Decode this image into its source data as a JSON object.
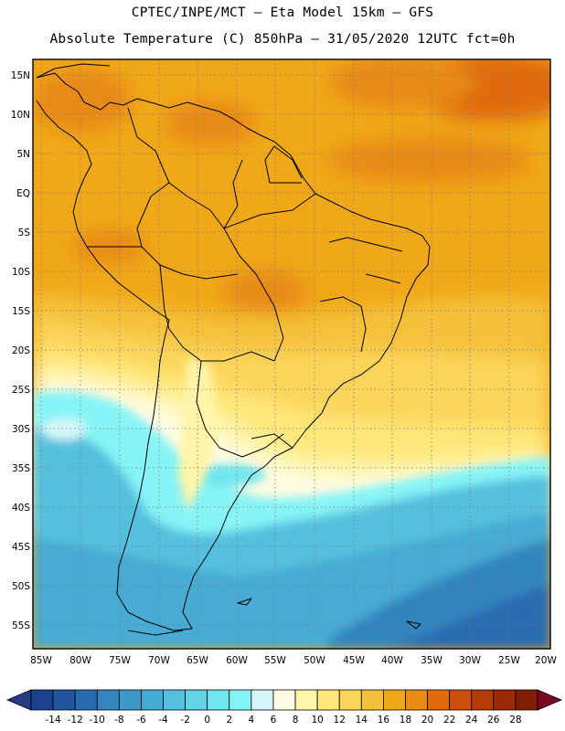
{
  "header": {
    "line1": "CPTEC/INPE/MCT –  Eta Model 15km – GFS",
    "line2": "Absolute Temperature (C) 850hPa – 31/05/2020 12UTC fct=0h"
  },
  "axes": {
    "lat_labels": [
      "15N",
      "10N",
      "5N",
      "EQ",
      "5S",
      "10S",
      "15S",
      "20S",
      "25S",
      "30S",
      "35S",
      "40S",
      "45S",
      "50S",
      "55S"
    ],
    "lon_labels": [
      "85W",
      "80W",
      "75W",
      "70W",
      "65W",
      "60W",
      "55W",
      "50W",
      "45W",
      "40W",
      "35W",
      "30W",
      "25W",
      "20W"
    ]
  },
  "colorbar": {
    "ticks": [
      "-14",
      "-12",
      "-10",
      "-8",
      "-6",
      "-4",
      "-2",
      "0",
      "2",
      "4",
      "6",
      "8",
      "10",
      "12",
      "14",
      "16",
      "18",
      "20",
      "22",
      "24",
      "26",
      "28"
    ],
    "colors": [
      "#1f3f8f",
      "#2255a0",
      "#2a6cb0",
      "#3384bf",
      "#3c98c9",
      "#46abd3",
      "#54c0dd",
      "#60d4e6",
      "#70e6ef",
      "#86f4f6",
      "#d4f6fa",
      "#fffbe2",
      "#fff5a8",
      "#ffe77a",
      "#fbd55a",
      "#f5c13b",
      "#f0a818",
      "#e88a14",
      "#e06a0c",
      "#cc4e0a",
      "#b53a08",
      "#9a2a08",
      "#7e1e06"
    ],
    "low_arrow_color": "#283a84",
    "high_arrow_color": "#7a0820"
  },
  "regions": {
    "land": "South America",
    "legend_note": "temperature shading"
  }
}
